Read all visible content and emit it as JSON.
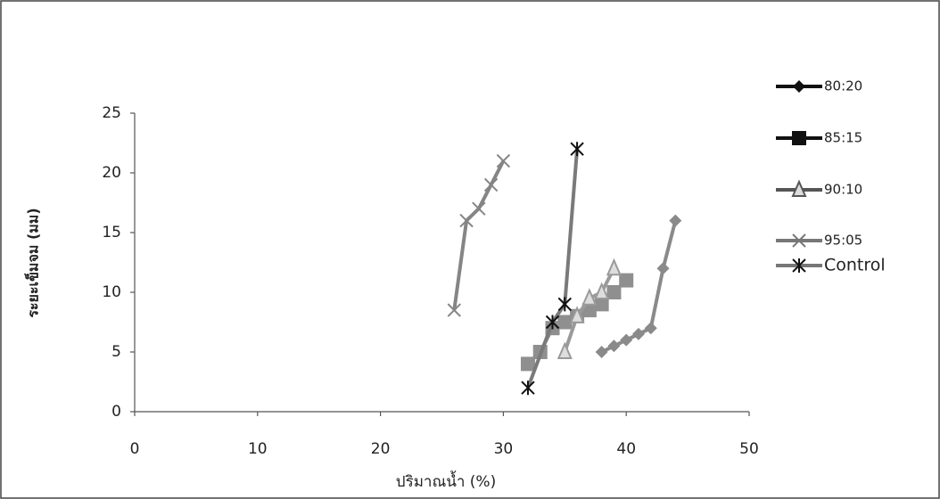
{
  "chart_data": {
    "type": "line",
    "x_label": "ปริมาณน้ำ (%)",
    "y_label": "ระยะเข็มจม (มม)",
    "xlim": [
      0,
      50
    ],
    "xticks": [
      0,
      10,
      20,
      30,
      40,
      50
    ],
    "ylim": [
      0,
      25
    ],
    "yticks": [
      0,
      5,
      10,
      15,
      20,
      25
    ],
    "grid": false,
    "legend": "right",
    "series": [
      {
        "name": "80:20",
        "color": "#8a8a8a",
        "legend_color": "#111111",
        "marker": "diamond",
        "x": [
          38,
          39,
          40,
          41,
          42,
          43,
          44
        ],
        "values": [
          5,
          5.5,
          6,
          6.5,
          7,
          12,
          16
        ]
      },
      {
        "name": "85:15",
        "color": "#8f8f8f",
        "legend_color": "#111111",
        "marker": "square",
        "x": [
          32,
          33,
          34,
          35,
          36,
          37,
          38,
          39,
          40
        ],
        "values": [
          4,
          5,
          7,
          7.5,
          8,
          8.5,
          9,
          10,
          11
        ]
      },
      {
        "name": "90:10",
        "color": "#9a9a9a",
        "legend_color": "#555555",
        "marker": "triangle",
        "x": [
          35,
          36,
          37,
          38,
          39
        ],
        "values": [
          5,
          8,
          9.5,
          10,
          12
        ]
      },
      {
        "name": "95:05",
        "color": "#858585",
        "legend_color": "#777777",
        "marker": "x",
        "x": [
          26,
          27,
          28,
          29,
          30
        ],
        "values": [
          8.5,
          16,
          17,
          19,
          21
        ]
      },
      {
        "name": "Control",
        "color": "#7a7a7a",
        "legend_color": "#777777",
        "marker": "star",
        "x": [
          32,
          34,
          35,
          36
        ],
        "values": [
          2,
          7.5,
          9,
          22
        ]
      }
    ]
  }
}
